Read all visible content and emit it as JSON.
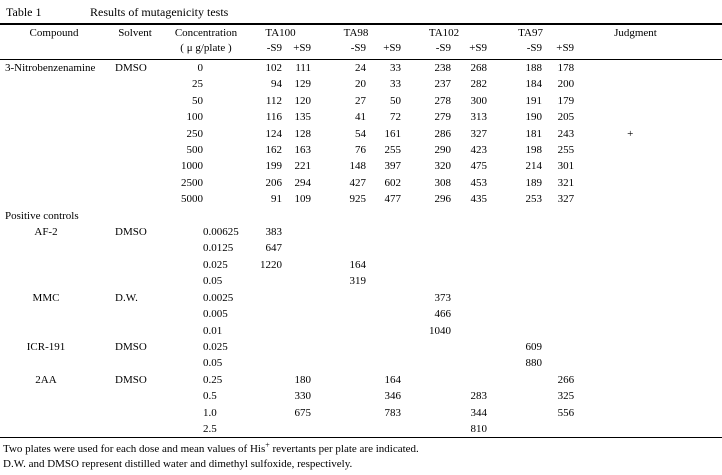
{
  "title": {
    "label": "Table 1",
    "caption": "Results of mutagenicity tests"
  },
  "header": {
    "compound": "Compound",
    "solvent": "Solvent",
    "concentration": "Concentration",
    "concentration_unit": "( μ g/plate )",
    "strains": [
      "TA100",
      "TA98",
      "TA102",
      "TA97"
    ],
    "sub": {
      "minus": "-S9",
      "plus": "+S9"
    },
    "judgment": "Judgment"
  },
  "rows": [
    {
      "compound": "3-Nitrobenzenamine",
      "solvent": "DMSO",
      "conc": "0",
      "values": [
        "102",
        "111",
        "24",
        "33",
        "238",
        "268",
        "188",
        "178"
      ],
      "judgment": ""
    },
    {
      "compound": "",
      "solvent": "",
      "conc": "25",
      "values": [
        "94",
        "129",
        "20",
        "33",
        "237",
        "282",
        "184",
        "200"
      ],
      "judgment": ""
    },
    {
      "compound": "",
      "solvent": "",
      "conc": "50",
      "values": [
        "112",
        "120",
        "27",
        "50",
        "278",
        "300",
        "191",
        "179"
      ],
      "judgment": ""
    },
    {
      "compound": "",
      "solvent": "",
      "conc": "100",
      "values": [
        "116",
        "135",
        "41",
        "72",
        "279",
        "313",
        "190",
        "205"
      ],
      "judgment": ""
    },
    {
      "compound": "",
      "solvent": "",
      "conc": "250",
      "values": [
        "124",
        "128",
        "54",
        "161",
        "286",
        "327",
        "181",
        "243"
      ],
      "judgment": "+"
    },
    {
      "compound": "",
      "solvent": "",
      "conc": "500",
      "values": [
        "162",
        "163",
        "76",
        "255",
        "290",
        "423",
        "198",
        "255"
      ],
      "judgment": ""
    },
    {
      "compound": "",
      "solvent": "",
      "conc": "1000",
      "values": [
        "199",
        "221",
        "148",
        "397",
        "320",
        "475",
        "214",
        "301"
      ],
      "judgment": ""
    },
    {
      "compound": "",
      "solvent": "",
      "conc": "2500",
      "values": [
        "206",
        "294",
        "427",
        "602",
        "308",
        "453",
        "189",
        "321"
      ],
      "judgment": ""
    },
    {
      "compound": "",
      "solvent": "",
      "conc": "5000",
      "values": [
        "91",
        "109",
        "925",
        "477",
        "296",
        "435",
        "253",
        "327"
      ],
      "judgment": ""
    },
    {
      "type": "section",
      "label": "Positive controls"
    },
    {
      "compound": "AF-2",
      "pc": true,
      "solvent": "DMSO",
      "conc": "0.00625",
      "dec": true,
      "values": [
        "383",
        "",
        "",
        "",
        "",
        "",
        "",
        ""
      ],
      "judgment": ""
    },
    {
      "compound": "",
      "solvent": "",
      "conc": "0.0125",
      "dec": true,
      "values": [
        "647",
        "",
        "",
        "",
        "",
        "",
        "",
        ""
      ],
      "judgment": ""
    },
    {
      "compound": "",
      "solvent": "",
      "conc": "0.025",
      "dec": true,
      "values": [
        "1220",
        "",
        "164",
        "",
        "",
        "",
        "",
        ""
      ],
      "judgment": ""
    },
    {
      "compound": "",
      "solvent": "",
      "conc": "0.05",
      "dec": true,
      "values": [
        "",
        "",
        "319",
        "",
        "",
        "",
        "",
        ""
      ],
      "judgment": ""
    },
    {
      "compound": "MMC",
      "pc": true,
      "solvent": "D.W.",
      "conc": "0.0025",
      "dec": true,
      "values": [
        "",
        "",
        "",
        "",
        "373",
        "",
        "",
        ""
      ],
      "judgment": ""
    },
    {
      "compound": "",
      "solvent": "",
      "conc": "0.005",
      "dec": true,
      "values": [
        "",
        "",
        "",
        "",
        "466",
        "",
        "",
        ""
      ],
      "judgment": ""
    },
    {
      "compound": "",
      "solvent": "",
      "conc": "0.01",
      "dec": true,
      "values": [
        "",
        "",
        "",
        "",
        "1040",
        "",
        "",
        ""
      ],
      "judgment": ""
    },
    {
      "compound": "ICR-191",
      "pc": true,
      "solvent": "DMSO",
      "conc": "0.025",
      "dec": true,
      "values": [
        "",
        "",
        "",
        "",
        "",
        "",
        "609",
        ""
      ],
      "judgment": ""
    },
    {
      "compound": "",
      "solvent": "",
      "conc": "0.05",
      "dec": true,
      "values": [
        "",
        "",
        "",
        "",
        "",
        "",
        "880",
        ""
      ],
      "judgment": ""
    },
    {
      "compound": "2AA",
      "pc": true,
      "solvent": "DMSO",
      "conc": "0.25",
      "dec": true,
      "values": [
        "",
        "180",
        "",
        "164",
        "",
        "",
        "",
        "266"
      ],
      "judgment": ""
    },
    {
      "compound": "",
      "solvent": "",
      "conc": "0.5",
      "dec": true,
      "values": [
        "",
        "330",
        "",
        "346",
        "",
        "283",
        "",
        "325"
      ],
      "judgment": ""
    },
    {
      "compound": "",
      "solvent": "",
      "conc": "1.0",
      "dec": true,
      "values": [
        "",
        "675",
        "",
        "783",
        "",
        "344",
        "",
        "556"
      ],
      "judgment": ""
    },
    {
      "compound": "",
      "solvent": "",
      "conc": "2.5",
      "dec": true,
      "values": [
        "",
        "",
        "",
        "",
        "",
        "810",
        "",
        ""
      ],
      "judgment": ""
    }
  ],
  "footnotes": {
    "line1_pre": "Two plates were used for each dose and mean values of His",
    "line1_sup": "+",
    "line1_post": " revertants per plate are indicated.",
    "line2": "D.W. and DMSO represent distilled water and dimethyl sulfoxide, respectively."
  }
}
